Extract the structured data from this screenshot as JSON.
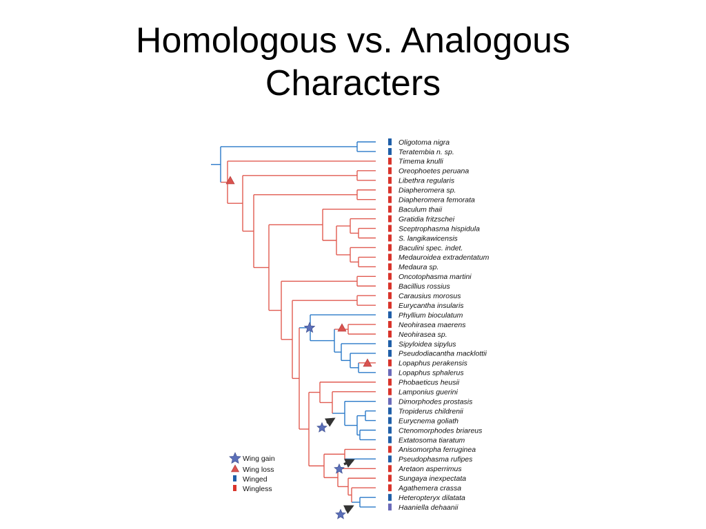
{
  "title": {
    "line1": "Homologous vs. Analogous",
    "line2": "Characters"
  },
  "colors": {
    "winged": "#2878c8",
    "wingless": "#e05a50",
    "winged_box": "#1f5fa8",
    "wingless_box": "#d9342b",
    "intermediate_box": "#6a6ab8",
    "star": "#5b6fb8",
    "triangle": "#d9534f",
    "arrow": "#333333"
  },
  "taxa": [
    {
      "name": "Oligotoma nigra",
      "state": "winged",
      "italic_parts": [
        "Oligotoma nigra"
      ]
    },
    {
      "name": "Teratembia n. sp.",
      "state": "winged"
    },
    {
      "name": "Timema knulli",
      "state": "wingless"
    },
    {
      "name": "Oreophoetes peruana",
      "state": "wingless"
    },
    {
      "name": "Libethra regularis",
      "state": "wingless"
    },
    {
      "name": "Diapheromera sp.",
      "state": "wingless"
    },
    {
      "name": "Diapheromera femorata",
      "state": "wingless"
    },
    {
      "name": "Baculum thaii",
      "state": "wingless"
    },
    {
      "name": "Gratidia fritzschei",
      "state": "wingless"
    },
    {
      "name": "Sceptrophasma hispidula",
      "state": "wingless"
    },
    {
      "name": "S. langikawicensis",
      "state": "wingless"
    },
    {
      "name": "Baculini spec. indet.",
      "state": "wingless"
    },
    {
      "name": "Medauroidea extradentatum",
      "state": "wingless"
    },
    {
      "name": "Medaura sp.",
      "state": "wingless"
    },
    {
      "name": "Oncotophasma martini",
      "state": "wingless"
    },
    {
      "name": "Bacillius rossius",
      "state": "wingless"
    },
    {
      "name": "Carausius morosus",
      "state": "wingless"
    },
    {
      "name": "Eurycantha insularis",
      "state": "wingless"
    },
    {
      "name": "Phyllium bioculatum",
      "state": "winged"
    },
    {
      "name": "Neohirasea maerens",
      "state": "wingless"
    },
    {
      "name": "Neohirasea sp.",
      "state": "wingless"
    },
    {
      "name": "Sipyloidea sipylus",
      "state": "winged"
    },
    {
      "name": "Pseudodiacantha macklottii",
      "state": "winged"
    },
    {
      "name": "Lopaphus perakensis",
      "state": "wingless"
    },
    {
      "name": "Lopaphus sphalerus",
      "state": "intermediate"
    },
    {
      "name": "Phobaeticus heusii",
      "state": "wingless"
    },
    {
      "name": "Lamponius guerini",
      "state": "wingless"
    },
    {
      "name": "Dimorphodes prostasis",
      "state": "intermediate"
    },
    {
      "name": "Tropiderus childrenii",
      "state": "winged"
    },
    {
      "name": "Eurycnema goliath",
      "state": "winged"
    },
    {
      "name": "Ctenomorphodes briareus",
      "state": "winged"
    },
    {
      "name": "Extatosoma tiaratum",
      "state": "winged"
    },
    {
      "name": "Anisomorpha ferruginea",
      "state": "wingless"
    },
    {
      "name": "Pseudophasma rufipes",
      "state": "winged"
    },
    {
      "name": "Aretaon asperrimus",
      "state": "wingless"
    },
    {
      "name": "Sungaya inexpectata",
      "state": "wingless"
    },
    {
      "name": "Agathemera crassa",
      "state": "wingless"
    },
    {
      "name": "Heteropteryx dilatata",
      "state": "winged"
    },
    {
      "name": "Haaniella dehaanii",
      "state": "intermediate"
    }
  ],
  "legend": {
    "gain": "Wing gain",
    "loss": "Wing loss",
    "winged": "Winged",
    "wingless": "Wingless"
  }
}
